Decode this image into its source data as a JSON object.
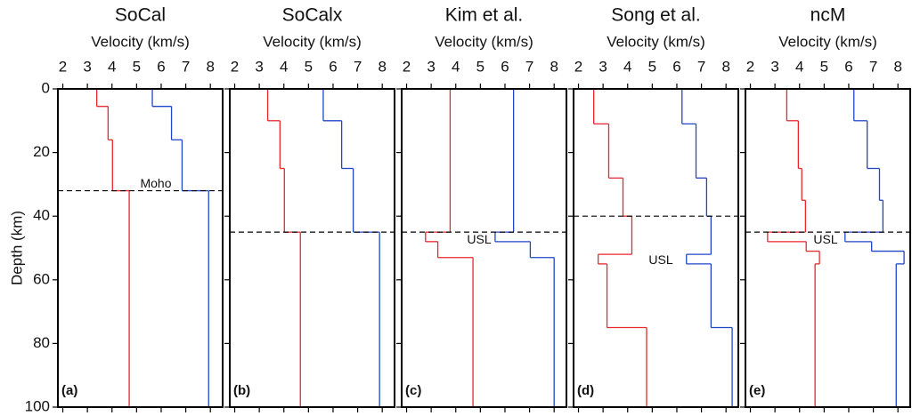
{
  "chart_data": [
    {
      "type": "step",
      "title": "SoCal",
      "x_label": "Velocity (km/s)",
      "y_label": "Depth (km)",
      "panel_label": "(a)",
      "xlim": [
        1.8,
        8.5
      ],
      "xticks": [
        2,
        3,
        4,
        5,
        6,
        7,
        8
      ],
      "ylim": [
        0,
        100
      ],
      "yticks": [
        0,
        20,
        40,
        60,
        80,
        100
      ],
      "y_inverted": true,
      "depth_breaks": [
        0,
        5.5,
        16,
        32,
        100
      ],
      "series": [
        {
          "color": "#e8262b",
          "values": [
            3.38,
            3.84,
            4.02,
            4.7
          ]
        },
        {
          "color": "#2046c8",
          "values": [
            5.64,
            6.42,
            6.85,
            7.93
          ]
        }
      ],
      "hline": 32,
      "annotation": "Moho"
    },
    {
      "type": "step",
      "title": "SoCalx",
      "x_label": "Velocity (km/s)",
      "panel_label": "(b)",
      "xlim": [
        1.8,
        8.5
      ],
      "xticks": [
        2,
        3,
        4,
        5,
        6,
        7,
        8
      ],
      "ylim": [
        0,
        100
      ],
      "y_inverted": true,
      "depth_breaks": [
        0,
        10,
        25,
        45,
        100
      ],
      "series": [
        {
          "color": "#e8262b",
          "values": [
            3.34,
            3.84,
            4.02,
            4.67
          ]
        },
        {
          "color": "#2046c8",
          "values": [
            5.6,
            6.35,
            6.82,
            7.89
          ]
        }
      ],
      "hline": 45
    },
    {
      "type": "step",
      "title": "Kim et al.",
      "x_label": "Velocity (km/s)",
      "panel_label": "(c)",
      "xlim": [
        1.8,
        8.5
      ],
      "xticks": [
        2,
        3,
        4,
        5,
        6,
        7,
        8
      ],
      "ylim": [
        0,
        100
      ],
      "y_inverted": true,
      "depth_breaks": [
        0,
        45,
        48,
        53,
        100
      ],
      "series": [
        {
          "color": "#e8262b",
          "values": [
            3.77,
            2.77,
            3.27,
            4.7
          ]
        },
        {
          "color": "#2046c8",
          "values": [
            6.35,
            5.6,
            7.03,
            8.0
          ]
        }
      ],
      "hline": 45,
      "annotation": "USL"
    },
    {
      "type": "step",
      "title": "Song et al.",
      "x_label": "Velocity (km/s)",
      "panel_label": "(d)",
      "xlim": [
        1.8,
        8.5
      ],
      "xticks": [
        2,
        3,
        4,
        5,
        6,
        7,
        8
      ],
      "ylim": [
        0,
        100
      ],
      "y_inverted": true,
      "depth_breaks": [
        0,
        11,
        28,
        40,
        52,
        55,
        75,
        100
      ],
      "series": [
        {
          "color": "#e8262b",
          "values": [
            2.62,
            3.23,
            3.81,
            4.17,
            2.8,
            3.16,
            4.77
          ]
        },
        {
          "color": "#2046c8",
          "values": [
            6.21,
            6.78,
            7.21,
            7.39,
            6.39,
            7.39,
            8.25
          ]
        }
      ],
      "hline": 40,
      "annotation": "USL"
    },
    {
      "type": "step",
      "title": "ncM",
      "x_label": "Velocity (km/s)",
      "panel_label": "(e)",
      "xlim": [
        1.8,
        8.5
      ],
      "xticks": [
        2,
        3,
        4,
        5,
        6,
        7,
        8
      ],
      "ylim": [
        0,
        100
      ],
      "y_inverted": true,
      "depth_breaks": [
        0,
        10,
        25,
        35,
        45,
        48,
        51,
        55,
        100
      ],
      "series": [
        {
          "color": "#e8262b",
          "values": [
            3.48,
            3.95,
            4.09,
            4.24,
            2.7,
            4.27,
            4.81,
            4.63
          ]
        },
        {
          "color": "#2046c8",
          "values": [
            6.21,
            6.75,
            7.25,
            7.39,
            5.85,
            6.93,
            8.25,
            7.93
          ]
        }
      ],
      "hline": 45,
      "annotation": "USL"
    }
  ]
}
